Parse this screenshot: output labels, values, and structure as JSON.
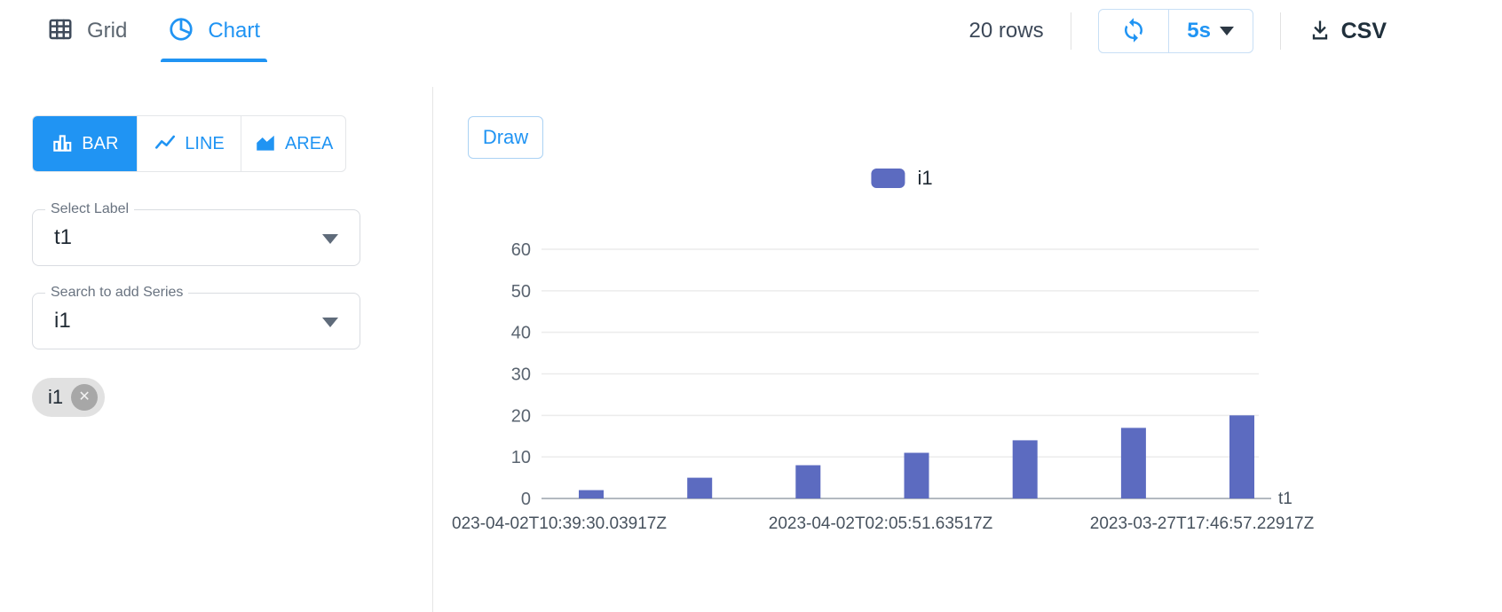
{
  "colors": {
    "accent": "#2094f3",
    "bar": "#5c6bc0"
  },
  "icons": {
    "close": "✕"
  },
  "header": {
    "tabs": [
      {
        "label": "Grid"
      },
      {
        "label": "Chart"
      }
    ],
    "active_tab": "Chart",
    "rows_count": "20 rows",
    "refresh_interval": "5s",
    "export_label": "CSV"
  },
  "panel": {
    "chart_types": [
      {
        "label": "BAR"
      },
      {
        "label": "LINE"
      },
      {
        "label": "AREA"
      }
    ],
    "active_chart_type": "BAR",
    "label_select": {
      "label": "Select Label",
      "value": "t1"
    },
    "series_select": {
      "label": "Search to add Series",
      "value": "i1"
    },
    "chips": [
      {
        "label": "i1"
      }
    ]
  },
  "chart": {
    "draw_button": "Draw"
  },
  "chart_data": {
    "type": "bar",
    "series": [
      {
        "name": "i1",
        "color": "#5c6bc0",
        "values": [
          2,
          5,
          8,
          11,
          14,
          17,
          20
        ]
      }
    ],
    "x_tick_labels": [
      "023-04-02T10:39:30.03917Z",
      "2023-04-02T02:05:51.63517Z",
      "2023-03-27T17:46:57.22917Z"
    ],
    "xlabel": "t1",
    "ylabel": "",
    "ylim": [
      0,
      60
    ],
    "yticks": [
      0,
      10,
      20,
      30,
      40,
      50,
      60
    ],
    "grid": true,
    "legend": [
      "i1"
    ],
    "legend_position": "top-center"
  }
}
